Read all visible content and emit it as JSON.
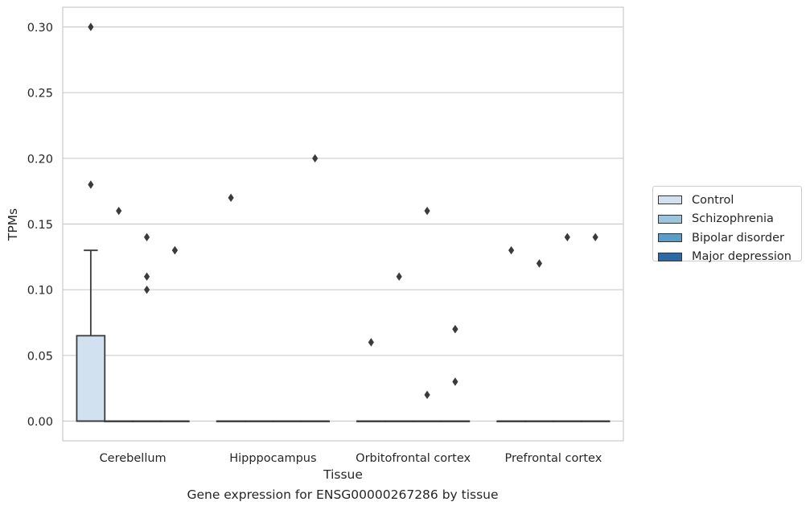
{
  "chart_data": {
    "type": "box",
    "title": "",
    "caption": "Gene expression for ENSG00000267286 by tissue",
    "xlabel": "Tissue",
    "ylabel": "TPMs",
    "ylim": [
      -0.015,
      0.315
    ],
    "yticks": [
      "0.00",
      "0.05",
      "0.10",
      "0.15",
      "0.20",
      "0.25",
      "0.30"
    ],
    "ytick_values": [
      0,
      0.05,
      0.1,
      0.15,
      0.2,
      0.25,
      0.3
    ],
    "categories": [
      "Cerebellum",
      "Hipppocampus",
      "Orbitofrontal cortex",
      "Prefrontal cortex"
    ],
    "grid": "horizontal",
    "legend_position": "right",
    "series": [
      {
        "name": "Control",
        "color": "#d1e1f0",
        "boxes": [
          {
            "q1": 0,
            "median": 0,
            "q3": 0.065,
            "whisker_low": 0,
            "whisker_high": 0.13,
            "outliers": [
              0.3,
              0.18
            ]
          },
          {
            "q1": 0,
            "median": 0,
            "q3": 0,
            "whisker_low": 0,
            "whisker_high": 0,
            "outliers": [
              0.17
            ]
          },
          {
            "q1": 0,
            "median": 0,
            "q3": 0,
            "whisker_low": 0,
            "whisker_high": 0,
            "outliers": [
              0.06
            ]
          },
          {
            "q1": 0,
            "median": 0,
            "q3": 0,
            "whisker_low": 0,
            "whisker_high": 0,
            "outliers": [
              0.13
            ]
          }
        ]
      },
      {
        "name": "Schizophrenia",
        "color": "#9bc4dd",
        "boxes": [
          {
            "q1": 0,
            "median": 0,
            "q3": 0,
            "whisker_low": 0,
            "whisker_high": 0,
            "outliers": [
              0.16
            ]
          },
          {
            "q1": 0,
            "median": 0,
            "q3": 0,
            "whisker_low": 0,
            "whisker_high": 0,
            "outliers": []
          },
          {
            "q1": 0,
            "median": 0,
            "q3": 0,
            "whisker_low": 0,
            "whisker_high": 0,
            "outliers": [
              0.11
            ]
          },
          {
            "q1": 0,
            "median": 0,
            "q3": 0,
            "whisker_low": 0,
            "whisker_high": 0,
            "outliers": [
              0.12
            ]
          }
        ]
      },
      {
        "name": "Bipolar disorder",
        "color": "#5a9dc8",
        "boxes": [
          {
            "q1": 0,
            "median": 0,
            "q3": 0,
            "whisker_low": 0,
            "whisker_high": 0,
            "outliers": [
              0.14,
              0.11,
              0.1
            ]
          },
          {
            "q1": 0,
            "median": 0,
            "q3": 0,
            "whisker_low": 0,
            "whisker_high": 0,
            "outliers": []
          },
          {
            "q1": 0,
            "median": 0,
            "q3": 0,
            "whisker_low": 0,
            "whisker_high": 0,
            "outliers": [
              0.16,
              0.02
            ]
          },
          {
            "q1": 0,
            "median": 0,
            "q3": 0,
            "whisker_low": 0,
            "whisker_high": 0,
            "outliers": [
              0.14
            ]
          }
        ]
      },
      {
        "name": "Major depression",
        "color": "#2b6aa7",
        "boxes": [
          {
            "q1": 0,
            "median": 0,
            "q3": 0,
            "whisker_low": 0,
            "whisker_high": 0,
            "outliers": [
              0.13,
              0.13
            ]
          },
          {
            "q1": 0,
            "median": 0,
            "q3": 0,
            "whisker_low": 0,
            "whisker_high": 0,
            "outliers": [
              0.2
            ]
          },
          {
            "q1": 0,
            "median": 0,
            "q3": 0,
            "whisker_low": 0,
            "whisker_high": 0,
            "outliers": [
              0.07,
              0.07,
              0.03
            ]
          },
          {
            "q1": 0,
            "median": 0,
            "q3": 0,
            "whisker_low": 0,
            "whisker_high": 0,
            "outliers": [
              0.14
            ]
          }
        ]
      }
    ]
  }
}
